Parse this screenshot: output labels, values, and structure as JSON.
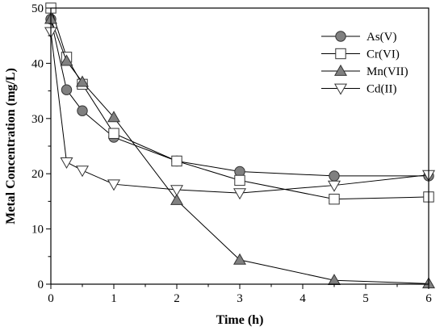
{
  "chart_data": {
    "type": "line",
    "title": "",
    "xlabel": "Time (h)",
    "ylabel": "Metal Concentration (mg/L)",
    "xlim": [
      0,
      6
    ],
    "ylim": [
      0,
      50
    ],
    "x_ticks": [
      "0",
      "1",
      "2",
      "3",
      "4",
      "5",
      "6"
    ],
    "y_ticks": [
      "0",
      "10",
      "20",
      "30",
      "40",
      "50"
    ],
    "grid": false,
    "legend_position": "top-right",
    "series": [
      {
        "name": "As(V)",
        "marker": "circle",
        "fill": "#808080",
        "x": [
          0,
          0.25,
          0.5,
          1,
          2,
          3,
          4.5,
          6
        ],
        "y": [
          48,
          35.2,
          31.4,
          26.6,
          22.3,
          20.4,
          19.6,
          19.6
        ]
      },
      {
        "name": "Cr(VI)",
        "marker": "square",
        "fill": "#ffffff",
        "x": [
          0,
          0.25,
          0.5,
          1,
          2,
          3,
          4.5,
          6
        ],
        "y": [
          50,
          41.1,
          36.2,
          27.3,
          22.3,
          18.8,
          15.4,
          15.8
        ]
      },
      {
        "name": "Mn(VII)",
        "marker": "triangle-up",
        "fill": "#808080",
        "x": [
          0,
          0.25,
          0.5,
          1,
          2,
          3,
          4.5,
          6
        ],
        "y": [
          48,
          40.4,
          36.6,
          30.2,
          15.2,
          4.4,
          0.7,
          0.1
        ]
      },
      {
        "name": "Cd(II)",
        "marker": "triangle-down",
        "fill": "#ffffff",
        "x": [
          0,
          0.25,
          0.5,
          1,
          2,
          3,
          4.5,
          6
        ],
        "y": [
          45.7,
          22.1,
          20.6,
          18.1,
          17.1,
          16.5,
          17.9,
          19.8
        ]
      }
    ]
  }
}
